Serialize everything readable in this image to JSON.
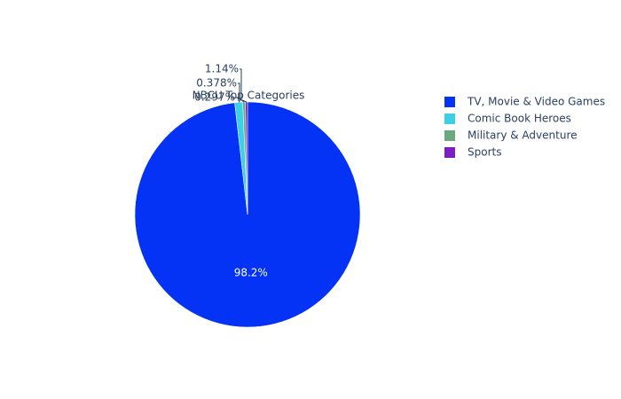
{
  "chart_data": {
    "type": "pie",
    "title": "NBCU Top Categories",
    "categories": [
      "TV, Movie & Video Games",
      "Comic Book Heroes",
      "Military & Adventure",
      "Sports"
    ],
    "values": [
      98.2,
      1.14,
      0.378,
      0.297
    ],
    "value_labels": [
      "98.2%",
      "1.14%",
      "0.378%",
      "0.297%"
    ],
    "colors": [
      "#0433f5",
      "#3ccfe6",
      "#6aa97f",
      "#7a1ec6"
    ],
    "legend": "top-right"
  }
}
